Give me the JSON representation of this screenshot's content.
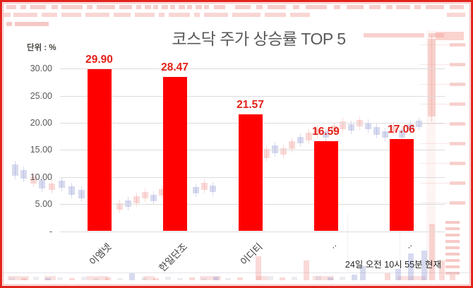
{
  "frame": {
    "border_color": "#e2241d",
    "background_color": "#ffffff"
  },
  "chart": {
    "title": "코스닥 주가 상승률 TOP 5",
    "unit_label": "단위 : %",
    "timestamp": "24일 오전 10시 55분 현재"
  },
  "chart_data": {
    "type": "bar",
    "title": "코스닥 주가 상승률 TOP 5",
    "unit": "%",
    "categories": [
      "이엠넷",
      "한일단조",
      "이디티",
      "..",
      ".."
    ],
    "values": [
      29.9,
      28.47,
      21.57,
      16.59,
      17.06
    ],
    "value_labels": [
      "29.90",
      "28.47",
      "21.57",
      "16.59",
      "17.06"
    ],
    "ylim": [
      0,
      30
    ],
    "yticks": [
      {
        "label": "30.00",
        "value": 30
      },
      {
        "label": "25.00",
        "value": 25
      },
      {
        "label": "20.00",
        "value": 20
      },
      {
        "label": "15.00",
        "value": 15
      },
      {
        "label": "10.00",
        "value": 10
      },
      {
        "label": "5.00",
        "value": 5
      },
      {
        "label": "-",
        "value": 0
      }
    ],
    "grid": true,
    "legend": null,
    "bar_color": "#ff0000",
    "value_label_color": "#e32119",
    "as_of": "24일 오전 10시 55분 현재"
  }
}
